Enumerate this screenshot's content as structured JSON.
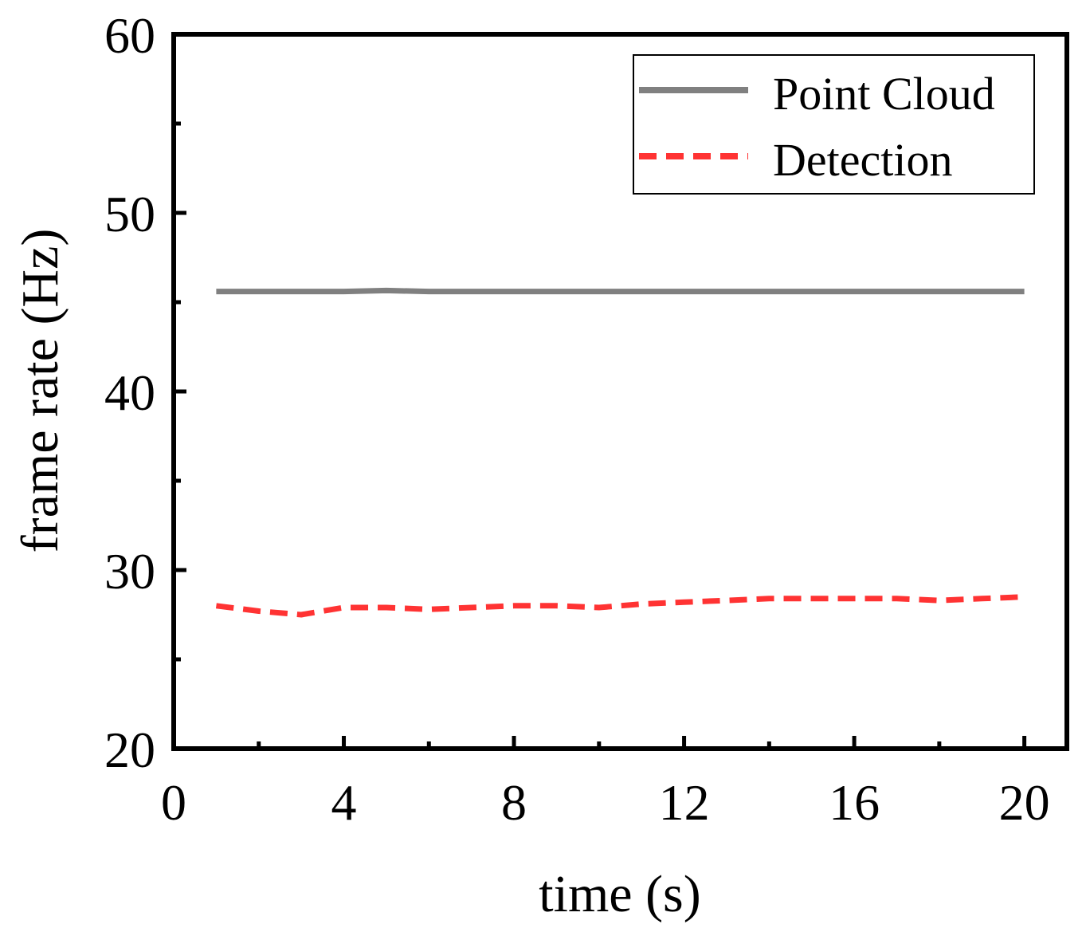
{
  "chart_data": {
    "type": "line",
    "title": "",
    "xlabel": "time (s)",
    "ylabel": "frame rate (Hz)",
    "xlim": [
      0,
      21
    ],
    "ylim": [
      20,
      60
    ],
    "x_ticks": [
      0,
      4,
      8,
      12,
      16,
      20
    ],
    "y_ticks": [
      20,
      30,
      40,
      50,
      60
    ],
    "x_tick_labels": [
      "0",
      "4",
      "8",
      "12",
      "16",
      "20"
    ],
    "y_tick_labels": [
      "20",
      "30",
      "40",
      "50",
      "60"
    ],
    "x_minor_ticks": [
      2,
      6,
      10,
      14,
      18
    ],
    "y_minor_ticks": [
      25,
      35,
      45,
      55
    ],
    "grid": false,
    "legend_position": "top-right",
    "series": [
      {
        "name": "Point Cloud",
        "color": "#808080",
        "line_style": "solid",
        "x": [
          1,
          2,
          3,
          4,
          5,
          6,
          7,
          8,
          9,
          10,
          11,
          12,
          13,
          14,
          15,
          16,
          17,
          18,
          19,
          20
        ],
        "y": [
          45.6,
          45.6,
          45.6,
          45.6,
          45.65,
          45.6,
          45.6,
          45.6,
          45.6,
          45.6,
          45.6,
          45.6,
          45.6,
          45.6,
          45.6,
          45.6,
          45.6,
          45.6,
          45.6,
          45.6
        ]
      },
      {
        "name": "Detection",
        "color": "#ff3333",
        "line_style": "dashed",
        "x": [
          1,
          2,
          3,
          4,
          5,
          6,
          7,
          8,
          9,
          10,
          11,
          12,
          13,
          14,
          15,
          16,
          17,
          18,
          19,
          20
        ],
        "y": [
          28.0,
          27.7,
          27.5,
          27.9,
          27.9,
          27.8,
          27.9,
          28.0,
          28.0,
          27.9,
          28.1,
          28.2,
          28.3,
          28.4,
          28.4,
          28.4,
          28.4,
          28.3,
          28.4,
          28.5
        ]
      }
    ]
  }
}
